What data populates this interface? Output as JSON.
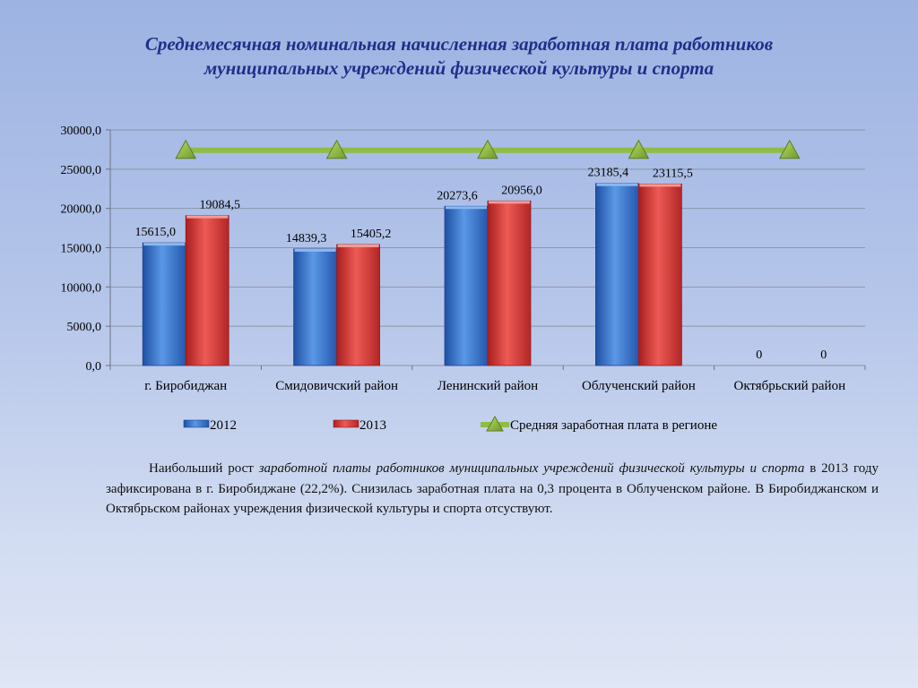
{
  "title": {
    "line1": "Среднемесячная номинальная начисленная заработная плата работников",
    "line2": "муниципальных учреждений физической культуры и спорта"
  },
  "chart_data": {
    "type": "bar",
    "categories": [
      "г. Биробиджан",
      "Смидовичский район",
      "Ленинский район",
      "Облученский район",
      "Октябрьский район"
    ],
    "series": [
      {
        "name": "2012",
        "values": [
          15615.0,
          14839.3,
          20273.6,
          23185.4,
          0
        ],
        "labels": [
          "15615,0",
          "14839,3",
          "20273,6",
          "23185,4",
          "0"
        ],
        "color": "#3a78d2"
      },
      {
        "name": "2013",
        "values": [
          19084.5,
          15405.2,
          20956.0,
          23115.5,
          0
        ],
        "labels": [
          "19084,5",
          "15405,2",
          "20956,0",
          "23115,5",
          "0"
        ],
        "color": "#d83a3a"
      }
    ],
    "line_series": {
      "name": "Средняя заработная плата в регионе",
      "values": [
        27400,
        27400,
        27400,
        27400,
        27400
      ],
      "color": "#8fbc45",
      "marker": "triangle"
    },
    "ylim": [
      0,
      30000
    ],
    "yticks": [
      0,
      5000,
      10000,
      15000,
      20000,
      25000,
      30000
    ],
    "ytick_labels": [
      "0,0",
      "5000,0",
      "10000,0",
      "15000,0",
      "20000,0",
      "25000,0",
      "30000,0"
    ],
    "grid": true,
    "legend_position": "bottom"
  },
  "paragraph": {
    "p1": "Наибольший рост ",
    "p2": "заработной платы работников муниципальных учреждений физической культуры и спорта",
    "p3": " в 2013 году зафиксирована в г. Биробиджане (22,2%). Снизилась заработная плата на 0,3 процента в Облученском районе. В Биробиджанском и Октябрьском районах учреждения физической культуры и спорта отсуствуют."
  }
}
